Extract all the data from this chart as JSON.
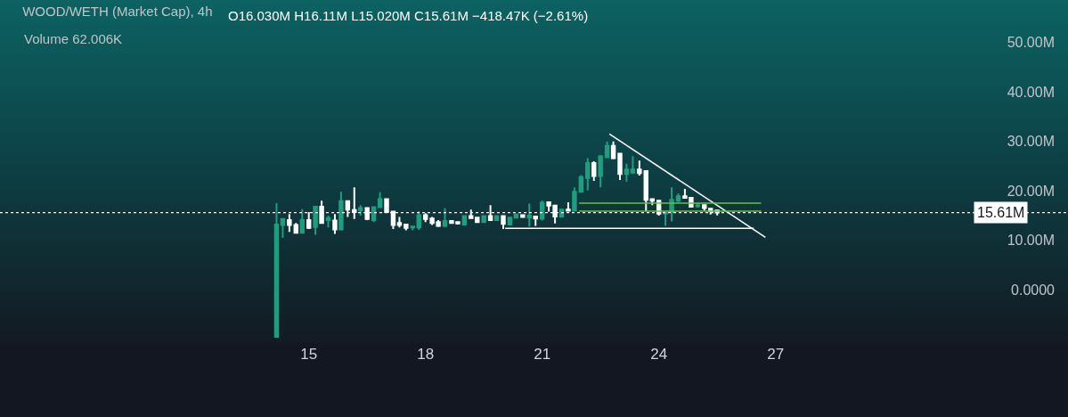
{
  "chart_data": {
    "type": "candlestick",
    "title": "WOOD/WETH (Market Cap), 4h",
    "subtitle": "O16.030M H16.11M L15.020M C15.61M −418.47K (−2.61%)",
    "annotations": [
      "Volume 62.006K"
    ],
    "xlim": [
      7.06,
      34.52
    ],
    "xticks": [
      15,
      18,
      21,
      24,
      27
    ],
    "ylim": [
      -25.74,
      58.6
    ],
    "yticks": [
      {
        "value": 0,
        "label": "0.0000"
      },
      {
        "value": 10,
        "label": "10.00M"
      },
      {
        "value": 20,
        "label": "20.00M"
      },
      {
        "value": 30,
        "label": "30.00M"
      },
      {
        "value": 40,
        "label": "40.00M"
      },
      {
        "value": 50,
        "label": "50.00M"
      }
    ],
    "grid": false,
    "ref_lines": [
      {
        "axis": "y",
        "value": 15.61,
        "label": "15.61M",
        "color": "#ffffff",
        "line_style": "dotted"
      }
    ],
    "series": [
      {
        "color": "#1f9e7f",
        "x": [
          14.17,
          14.33,
          14.83,
          15.17,
          15.5,
          15.83,
          16.33,
          16.67,
          16.83,
          17.67,
          17.83,
          18.5,
          19.0,
          19.5,
          19.83,
          20.17,
          20.33,
          20.67,
          21.0,
          21.5,
          21.83,
          22.0,
          22.17,
          22.5,
          22.67,
          23.17,
          23.33,
          24.17,
          24.33,
          24.5,
          25.0
        ],
        "ohlc": [
          [
            -9.5,
            17.5,
            -9.5,
            13.2
          ],
          [
            13.1,
            14.5,
            10.5,
            14.3
          ],
          [
            11.5,
            16.3,
            11.4,
            14.1
          ],
          [
            12.7,
            16.8,
            11.1,
            16.8
          ],
          [
            14.1,
            15.0,
            12.6,
            14.5
          ],
          [
            12.2,
            19.8,
            12.2,
            17.9
          ],
          [
            16.1,
            17.1,
            15.0,
            16.5
          ],
          [
            14.1,
            16.7,
            13.7,
            16.7
          ],
          [
            16.7,
            19.7,
            16.5,
            18.3
          ],
          [
            12.6,
            12.8,
            12.0,
            12.8
          ],
          [
            12.6,
            15.9,
            12.1,
            15.1
          ],
          [
            12.9,
            16.5,
            12.7,
            13.9
          ],
          [
            13.2,
            14.9,
            13.2,
            14.9
          ],
          [
            13.7,
            14.9,
            13.5,
            14.9
          ],
          [
            14.1,
            15.0,
            14.0,
            14.9
          ],
          [
            13.2,
            14.6,
            13.0,
            14.6
          ],
          [
            14.6,
            15.2,
            14.6,
            15.2
          ],
          [
            14.6,
            17.4,
            12.8,
            15.0
          ],
          [
            14.4,
            18.0,
            14.0,
            17.6
          ],
          [
            14.8,
            16.2,
            14.6,
            16.2
          ],
          [
            16.0,
            20.7,
            15.8,
            19.8
          ],
          [
            19.8,
            23.2,
            19.7,
            22.8
          ],
          [
            22.6,
            26.6,
            20.1,
            25.6
          ],
          [
            23.0,
            27.0,
            20.7,
            27.0
          ],
          [
            26.8,
            30.0,
            26.8,
            29.1
          ],
          [
            23.4,
            25.5,
            21.9,
            24.3
          ],
          [
            23.7,
            27.0,
            23.4,
            24.3
          ],
          [
            15.4,
            15.7,
            12.9,
            15.6
          ],
          [
            15.7,
            20.7,
            13.8,
            18.2
          ],
          [
            18.0,
            19.5,
            17.7,
            18.9
          ],
          [
            16.9,
            17.6,
            16.6,
            17.1
          ]
        ]
      },
      {
        "color": "#ffffff",
        "x": [
          14.5,
          14.67,
          15.0,
          15.33,
          15.67,
          16.0,
          16.17,
          16.5,
          17.0,
          17.17,
          17.33,
          17.5,
          18.0,
          18.17,
          18.33,
          18.67,
          18.83,
          19.17,
          19.33,
          19.67,
          20.0,
          20.5,
          20.83,
          21.17,
          21.33,
          21.67,
          22.33,
          22.83,
          23.0,
          23.5,
          23.67,
          23.83,
          24.0,
          24.67,
          24.83,
          25.17,
          25.33,
          25.5
        ],
        "ohlc": [
          [
            14.1,
            15.3,
            11.7,
            13.1
          ],
          [
            13.1,
            13.5,
            11.4,
            11.5
          ],
          [
            14.1,
            15.7,
            12.3,
            12.5
          ],
          [
            16.8,
            18.0,
            13.3,
            13.5
          ],
          [
            14.0,
            15.3,
            11.3,
            12.2
          ],
          [
            17.9,
            18.1,
            14.7,
            16.2
          ],
          [
            16.1,
            20.7,
            14.3,
            15.7
          ],
          [
            16.5,
            16.5,
            14.1,
            14.3
          ],
          [
            18.3,
            18.3,
            15.6,
            15.7
          ],
          [
            15.8,
            15.8,
            12.3,
            13.1
          ],
          [
            13.5,
            14.7,
            12.6,
            13.1
          ],
          [
            13.2,
            13.3,
            12.0,
            12.5
          ],
          [
            15.1,
            15.5,
            13.7,
            14.3
          ],
          [
            14.4,
            14.7,
            13.1,
            13.5
          ],
          [
            13.7,
            14.1,
            12.7,
            12.9
          ],
          [
            13.9,
            14.1,
            13.4,
            13.5
          ],
          [
            13.7,
            13.7,
            13.2,
            13.4
          ],
          [
            14.9,
            16.2,
            14.4,
            14.5
          ],
          [
            14.6,
            14.6,
            13.7,
            13.7
          ],
          [
            14.9,
            17.1,
            14.0,
            14.1
          ],
          [
            14.9,
            14.9,
            12.3,
            13.3
          ],
          [
            15.1,
            15.2,
            14.6,
            14.7
          ],
          [
            14.8,
            14.8,
            12.9,
            14.4
          ],
          [
            17.7,
            17.7,
            15.8,
            17.0
          ],
          [
            17.0,
            17.2,
            13.4,
            14.8
          ],
          [
            16.2,
            17.7,
            15.9,
            16.0
          ],
          [
            25.6,
            26.0,
            22.0,
            23.0
          ],
          [
            29.1,
            30.0,
            26.4,
            26.6
          ],
          [
            27.5,
            27.5,
            22.2,
            23.4
          ],
          [
            24.3,
            26.1,
            23.1,
            23.6
          ],
          [
            24.0,
            24.0,
            15.9,
            18.2
          ],
          [
            18.3,
            18.3,
            17.1,
            18.0
          ],
          [
            18.0,
            18.0,
            15.0,
            15.4
          ],
          [
            18.9,
            20.4,
            18.6,
            18.6
          ],
          [
            18.6,
            18.6,
            16.6,
            16.8
          ],
          [
            17.1,
            17.2,
            16.0,
            16.5
          ],
          [
            16.4,
            16.5,
            15.2,
            15.9
          ],
          [
            16.03,
            16.11,
            15.02,
            15.61
          ]
        ]
      },
      {
        "type": "line",
        "color": "#ffffff",
        "x": [
          22.73,
          26.74
        ],
        "values": [
          31.5,
          10.6
        ]
      },
      {
        "type": "line",
        "color": "#ffffff",
        "x": [
          20.05,
          26.44
        ],
        "values": [
          12.4,
          12.4
        ]
      },
      {
        "type": "line",
        "color": "#6abf40",
        "x": [
          21.95,
          26.63
        ],
        "values": [
          17.5,
          17.5
        ]
      },
      {
        "type": "line",
        "color": "#6abf40",
        "x": [
          21.95,
          26.63
        ],
        "values": [
          15.9,
          15.9
        ]
      }
    ]
  }
}
